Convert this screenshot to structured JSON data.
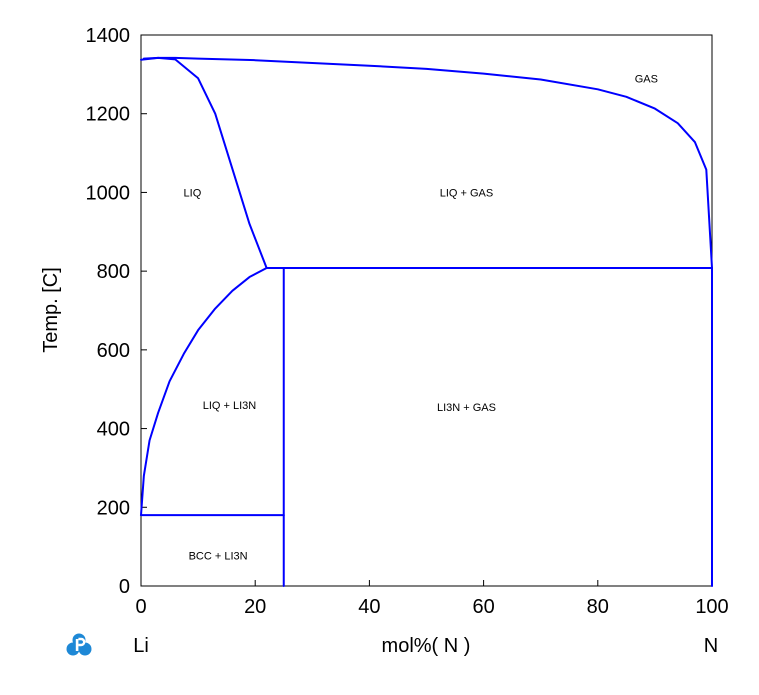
{
  "chart_data": {
    "type": "line",
    "title": "",
    "xlabel": "mol%( N )",
    "ylabel": "Temp. [C]",
    "xlim": [
      0,
      100
    ],
    "ylim": [
      0,
      1400
    ],
    "x_ticks": [
      "0",
      "20",
      "40",
      "60",
      "80",
      "100"
    ],
    "y_ticks": [
      "0",
      "200",
      "400",
      "600",
      "800",
      "1000",
      "1200",
      "1400"
    ],
    "x_tick_values": [
      0,
      20,
      40,
      60,
      80,
      100
    ],
    "y_tick_values": [
      0,
      200,
      400,
      600,
      800,
      1000,
      1200,
      1400
    ],
    "grid": false,
    "line_color": "#0000ff",
    "left_component": "Li",
    "right_component": "N",
    "series": [
      {
        "x": [
          0,
          3,
          6,
          10,
          20,
          30,
          40,
          50,
          60,
          70,
          80,
          85,
          90,
          94,
          97,
          99,
          100
        ],
        "y": [
          1337,
          1342,
          1342,
          1340,
          1336,
          1329,
          1322,
          1314,
          1302,
          1287,
          1262,
          1243,
          1213,
          1176,
          1128,
          1058,
          808
        ]
      },
      {
        "x": [
          0.5,
          3,
          6,
          10,
          13,
          16,
          19,
          22
        ],
        "y": [
          1340,
          1342,
          1338,
          1290,
          1200,
          1060,
          920,
          808
        ]
      },
      {
        "x": [
          0,
          0.5,
          1.5,
          3,
          5,
          7.5,
          10,
          13,
          16,
          19,
          22
        ],
        "y": [
          180,
          280,
          370,
          440,
          520,
          590,
          650,
          705,
          750,
          785,
          808
        ]
      },
      {
        "x": [
          22,
          100
        ],
        "y": [
          808,
          808
        ]
      },
      {
        "x": [
          25,
          25
        ],
        "y": [
          0,
          808
        ]
      },
      {
        "x": [
          0,
          25
        ],
        "y": [
          180,
          180
        ]
      },
      {
        "x": [
          100,
          100
        ],
        "y": [
          0,
          808
        ]
      }
    ],
    "regions": [
      {
        "label": "GAS",
        "x": 88.5,
        "y": 1290
      },
      {
        "label": "LIQ",
        "x": 9,
        "y": 1000
      },
      {
        "label": "LIQ + GAS",
        "x": 57,
        "y": 1000
      },
      {
        "label": "LIQ + LI3N",
        "x": 15.5,
        "y": 460
      },
      {
        "label": "LI3N + GAS",
        "x": 57,
        "y": 455
      },
      {
        "label": "BCC + LI3N",
        "x": 13.5,
        "y": 77
      }
    ]
  }
}
